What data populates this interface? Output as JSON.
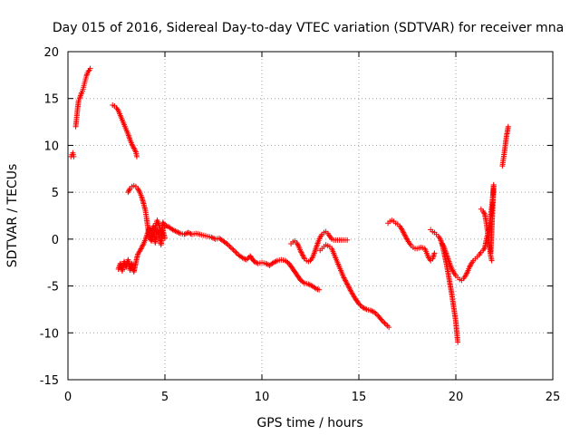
{
  "chart_data": {
    "type": "scatter",
    "title": "Day 015 of 2016, Sidereal Day-to-day VTEC variation (SDTVAR) for receiver mna",
    "xlabel": "GPS time / hours",
    "ylabel": "SDTVAR / TECUs",
    "xlim": [
      0,
      25
    ],
    "ylim": [
      -15,
      20
    ],
    "xticks": [
      0,
      5,
      10,
      15,
      20,
      25
    ],
    "yticks": [
      -15,
      -10,
      -5,
      0,
      5,
      10,
      15,
      20
    ],
    "xtick_labels": [
      "0",
      "5",
      "10",
      "15",
      "20",
      "25"
    ],
    "ytick_labels": [
      "-15",
      "-10",
      "-5",
      "0",
      "5",
      "10",
      "15",
      "20"
    ],
    "grid": true,
    "marker": "plus",
    "color": "#ff0000",
    "series": [
      {
        "name": "SDTVAR",
        "segments": [
          [
            [
              0.15,
              8.8
            ],
            [
              0.2,
              9.0
            ],
            [
              0.25,
              9.2
            ],
            [
              0.3,
              8.8
            ]
          ],
          [
            [
              0.4,
              12.0
            ],
            [
              0.45,
              13.0
            ],
            [
              0.5,
              14.0
            ],
            [
              0.55,
              14.8
            ],
            [
              0.6,
              15.0
            ],
            [
              0.65,
              15.3
            ],
            [
              0.7,
              15.6
            ],
            [
              0.75,
              15.8
            ],
            [
              0.8,
              16.2
            ],
            [
              0.85,
              16.6
            ],
            [
              0.9,
              17.0
            ],
            [
              0.95,
              17.4
            ],
            [
              1.0,
              17.7
            ],
            [
              1.05,
              17.9
            ],
            [
              1.1,
              18.0
            ],
            [
              1.15,
              18.2
            ]
          ],
          [
            [
              2.3,
              14.3
            ],
            [
              2.4,
              14.2
            ],
            [
              2.5,
              14.0
            ],
            [
              2.6,
              13.7
            ],
            [
              2.7,
              13.2
            ],
            [
              2.8,
              12.7
            ],
            [
              2.9,
              12.2
            ],
            [
              3.0,
              11.7
            ],
            [
              3.1,
              11.2
            ],
            [
              3.2,
              10.6
            ],
            [
              3.3,
              10.1
            ],
            [
              3.4,
              9.7
            ],
            [
              3.5,
              9.3
            ],
            [
              3.55,
              8.8
            ]
          ],
          [
            [
              3.1,
              5.0
            ],
            [
              3.2,
              5.4
            ],
            [
              3.3,
              5.6
            ],
            [
              3.4,
              5.7
            ],
            [
              3.5,
              5.6
            ],
            [
              3.6,
              5.4
            ],
            [
              3.7,
              5.0
            ],
            [
              3.8,
              4.5
            ],
            [
              3.9,
              3.8
            ],
            [
              4.0,
              3.0
            ],
            [
              4.05,
              2.3
            ],
            [
              4.1,
              1.5
            ],
            [
              4.15,
              0.8
            ],
            [
              4.2,
              0.2
            ],
            [
              4.3,
              -0.2
            ],
            [
              4.4,
              0.5
            ],
            [
              4.5,
              1.2
            ],
            [
              4.6,
              2.0
            ],
            [
              4.7,
              1.5
            ],
            [
              4.8,
              0.6
            ],
            [
              4.9,
              1.8
            ],
            [
              5.0,
              1.2
            ]
          ],
          [
            [
              2.6,
              -3.2
            ],
            [
              2.7,
              -2.6
            ],
            [
              2.8,
              -3.4
            ],
            [
              2.9,
              -2.4
            ],
            [
              3.0,
              -3.0
            ],
            [
              3.1,
              -2.2
            ],
            [
              3.2,
              -3.3
            ],
            [
              3.3,
              -2.6
            ],
            [
              3.4,
              -3.5
            ],
            [
              3.5,
              -2.5
            ],
            [
              3.6,
              -1.6
            ],
            [
              3.7,
              -1.3
            ],
            [
              3.8,
              -0.9
            ],
            [
              3.9,
              -0.5
            ],
            [
              4.0,
              0.0
            ],
            [
              4.1,
              0.6
            ],
            [
              4.2,
              1.2
            ],
            [
              4.3,
              0.3
            ],
            [
              4.4,
              1.4
            ],
            [
              4.5,
              -0.4
            ],
            [
              4.6,
              1.0
            ],
            [
              4.7,
              0.4
            ],
            [
              4.8,
              -0.6
            ],
            [
              4.9,
              0.9
            ],
            [
              5.0,
              0.1
            ]
          ],
          [
            [
              5.0,
              1.5
            ],
            [
              5.2,
              1.3
            ],
            [
              5.4,
              1.0
            ],
            [
              5.6,
              0.8
            ],
            [
              5.8,
              0.6
            ],
            [
              6.0,
              0.5
            ],
            [
              6.2,
              0.7
            ],
            [
              6.4,
              0.5
            ],
            [
              6.6,
              0.6
            ],
            [
              6.8,
              0.5
            ],
            [
              7.0,
              0.4
            ],
            [
              7.2,
              0.3
            ],
            [
              7.4,
              0.2
            ],
            [
              7.6,
              0.0
            ],
            [
              7.8,
              0.1
            ],
            [
              8.0,
              -0.2
            ],
            [
              8.2,
              -0.5
            ],
            [
              8.4,
              -0.9
            ],
            [
              8.6,
              -1.3
            ],
            [
              8.8,
              -1.7
            ],
            [
              9.0,
              -2.0
            ],
            [
              9.2,
              -2.2
            ],
            [
              9.4,
              -1.8
            ],
            [
              9.6,
              -2.4
            ],
            [
              9.8,
              -2.6
            ],
            [
              10.0,
              -2.5
            ],
            [
              10.2,
              -2.6
            ],
            [
              10.4,
              -2.8
            ],
            [
              10.6,
              -2.5
            ],
            [
              10.8,
              -2.3
            ],
            [
              11.0,
              -2.2
            ],
            [
              11.2,
              -2.3
            ],
            [
              11.4,
              -2.6
            ],
            [
              11.6,
              -3.2
            ],
            [
              11.8,
              -3.8
            ],
            [
              12.0,
              -4.4
            ],
            [
              12.2,
              -4.7
            ],
            [
              12.4,
              -4.8
            ],
            [
              12.6,
              -5.0
            ],
            [
              12.8,
              -5.3
            ],
            [
              12.95,
              -5.4
            ]
          ],
          [
            [
              11.5,
              -0.5
            ],
            [
              11.6,
              -0.3
            ],
            [
              11.7,
              -0.2
            ],
            [
              11.8,
              -0.4
            ],
            [
              11.9,
              -0.8
            ],
            [
              12.0,
              -1.3
            ],
            [
              12.1,
              -1.7
            ],
            [
              12.2,
              -2.1
            ],
            [
              12.3,
              -2.3
            ],
            [
              12.4,
              -2.4
            ],
            [
              12.5,
              -2.3
            ],
            [
              12.6,
              -2.0
            ],
            [
              12.7,
              -1.5
            ],
            [
              12.8,
              -0.9
            ],
            [
              12.9,
              -0.3
            ],
            [
              13.0,
              0.2
            ],
            [
              13.1,
              0.5
            ],
            [
              13.2,
              0.7
            ],
            [
              13.3,
              0.8
            ],
            [
              13.4,
              0.6
            ],
            [
              13.5,
              0.3
            ],
            [
              13.6,
              0.0
            ],
            [
              13.7,
              -0.1
            ],
            [
              13.8,
              -0.1
            ],
            [
              14.0,
              -0.1
            ],
            [
              14.2,
              -0.1
            ],
            [
              14.4,
              -0.1
            ]
          ],
          [
            [
              13.0,
              -1.2
            ],
            [
              13.1,
              -1.0
            ],
            [
              13.2,
              -0.8
            ],
            [
              13.3,
              -0.6
            ],
            [
              13.4,
              -0.7
            ],
            [
              13.5,
              -0.8
            ],
            [
              13.6,
              -1.0
            ],
            [
              13.7,
              -1.5
            ],
            [
              13.8,
              -2.0
            ],
            [
              13.9,
              -2.5
            ],
            [
              14.0,
              -3.0
            ],
            [
              14.1,
              -3.5
            ],
            [
              14.2,
              -4.0
            ],
            [
              14.4,
              -4.8
            ],
            [
              14.6,
              -5.6
            ],
            [
              14.8,
              -6.3
            ],
            [
              15.0,
              -6.9
            ],
            [
              15.2,
              -7.3
            ],
            [
              15.4,
              -7.5
            ],
            [
              15.6,
              -7.6
            ],
            [
              15.8,
              -7.8
            ],
            [
              16.0,
              -8.2
            ],
            [
              16.2,
              -8.7
            ],
            [
              16.4,
              -9.1
            ],
            [
              16.55,
              -9.4
            ]
          ],
          [
            [
              16.5,
              1.7
            ],
            [
              16.6,
              1.9
            ],
            [
              16.7,
              2.0
            ],
            [
              16.8,
              1.9
            ],
            [
              16.9,
              1.7
            ],
            [
              17.0,
              1.6
            ],
            [
              17.1,
              1.4
            ],
            [
              17.2,
              1.1
            ],
            [
              17.3,
              0.7
            ],
            [
              17.4,
              0.3
            ],
            [
              17.5,
              -0.1
            ],
            [
              17.6,
              -0.4
            ],
            [
              17.7,
              -0.7
            ],
            [
              17.8,
              -0.9
            ],
            [
              17.9,
              -1.0
            ],
            [
              18.0,
              -1.0
            ],
            [
              18.2,
              -0.9
            ],
            [
              18.4,
              -1.0
            ],
            [
              18.5,
              -1.5
            ],
            [
              18.6,
              -2.0
            ],
            [
              18.7,
              -2.3
            ],
            [
              18.8,
              -2.1
            ],
            [
              18.9,
              -1.5
            ]
          ],
          [
            [
              18.7,
              1.0
            ],
            [
              18.8,
              0.8
            ],
            [
              18.9,
              0.7
            ],
            [
              19.0,
              0.5
            ],
            [
              19.1,
              0.3
            ],
            [
              19.2,
              0.0
            ],
            [
              19.3,
              -0.6
            ],
            [
              19.4,
              -1.5
            ],
            [
              19.5,
              -2.5
            ],
            [
              19.6,
              -3.6
            ],
            [
              19.7,
              -4.8
            ],
            [
              19.8,
              -6.0
            ],
            [
              19.9,
              -7.4
            ],
            [
              20.0,
              -8.8
            ],
            [
              20.05,
              -10.0
            ],
            [
              20.1,
              -11.0
            ]
          ],
          [
            [
              19.3,
              -0.5
            ],
            [
              19.4,
              -0.9
            ],
            [
              19.5,
              -1.5
            ],
            [
              19.6,
              -2.1
            ],
            [
              19.7,
              -2.7
            ],
            [
              19.8,
              -3.2
            ],
            [
              19.9,
              -3.6
            ],
            [
              20.0,
              -3.9
            ],
            [
              20.1,
              -4.1
            ],
            [
              20.2,
              -4.3
            ],
            [
              20.3,
              -4.4
            ],
            [
              20.4,
              -4.2
            ],
            [
              20.5,
              -3.9
            ],
            [
              20.6,
              -3.5
            ],
            [
              20.7,
              -3.0
            ],
            [
              20.8,
              -2.6
            ],
            [
              20.9,
              -2.3
            ],
            [
              21.0,
              -2.1
            ],
            [
              21.1,
              -1.9
            ],
            [
              21.2,
              -1.7
            ],
            [
              21.3,
              -1.4
            ],
            [
              21.4,
              -1.2
            ],
            [
              21.5,
              -0.9
            ],
            [
              21.55,
              -0.3
            ],
            [
              21.6,
              0.2
            ],
            [
              21.65,
              0.6
            ],
            [
              21.7,
              1.2
            ],
            [
              21.75,
              1.8
            ],
            [
              21.8,
              2.5
            ],
            [
              21.85,
              3.4
            ],
            [
              21.9,
              4.5
            ],
            [
              21.95,
              5.8
            ],
            [
              21.8,
              -1.5
            ]
          ],
          [
            [
              21.3,
              3.2
            ],
            [
              21.4,
              3.0
            ],
            [
              21.5,
              2.6
            ],
            [
              21.55,
              2.0
            ],
            [
              21.6,
              1.3
            ],
            [
              21.65,
              0.6
            ],
            [
              21.7,
              -0.2
            ],
            [
              21.75,
              -1.0
            ],
            [
              21.8,
              -1.8
            ],
            [
              21.85,
              -2.3
            ]
          ],
          [
            [
              22.4,
              7.8
            ],
            [
              22.45,
              8.5
            ],
            [
              22.5,
              9.2
            ],
            [
              22.55,
              10.0
            ],
            [
              22.6,
              10.8
            ],
            [
              22.65,
              11.4
            ],
            [
              22.7,
              12.0
            ]
          ]
        ]
      }
    ]
  }
}
